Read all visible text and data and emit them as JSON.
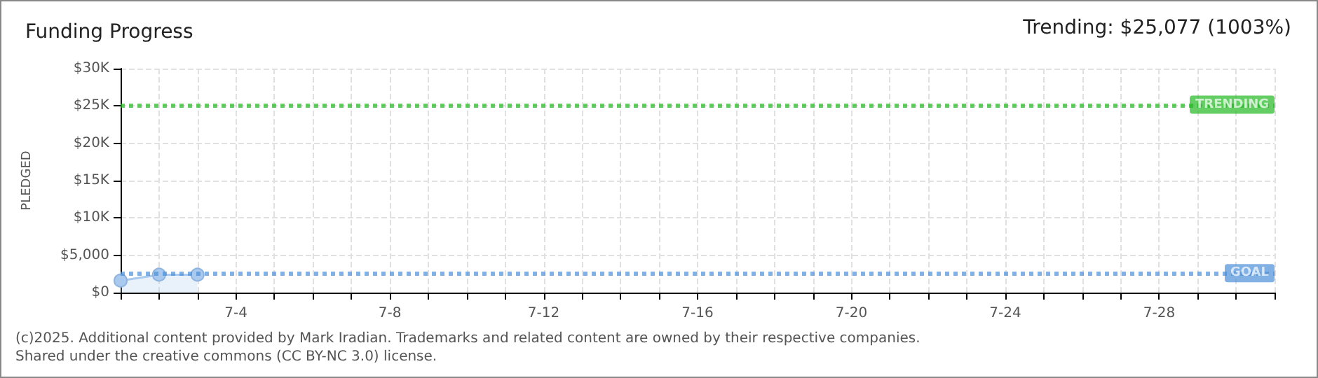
{
  "chart_data": {
    "type": "area",
    "title": "Funding Progress",
    "ylabel": "PLEDGED",
    "annotations": [
      "Trending: $25,077 (1003%)",
      "(c)2025. Additional content provided by Mark Iradian. Trademarks and related content are owned by their respective companies.",
      "Shared under the creative commons (CC BY-NC 3.0) license."
    ],
    "x": [
      "--07-01",
      "--07-02",
      "--07-03"
    ],
    "series": [
      {
        "color": "#a9c9ef",
        "values": [
          1600,
          2400,
          2400
        ]
      }
    ],
    "xlim": [
      "--07-01",
      "--07-31"
    ],
    "xticks": [
      {
        "value": "--07-01",
        "label": null
      },
      {
        "value": "--07-02",
        "label": null
      },
      {
        "value": "--07-03",
        "label": null
      },
      {
        "value": "--07-04",
        "label": "7-4"
      },
      {
        "value": "--07-05",
        "label": null
      },
      {
        "value": "--07-06",
        "label": null
      },
      {
        "value": "--07-07",
        "label": null
      },
      {
        "value": "--07-08",
        "label": "7-8"
      },
      {
        "value": "--07-09",
        "label": null
      },
      {
        "value": "--07-10",
        "label": null
      },
      {
        "value": "--07-11",
        "label": null
      },
      {
        "value": "--07-12",
        "label": "7-12"
      },
      {
        "value": "--07-13",
        "label": null
      },
      {
        "value": "--07-14",
        "label": null
      },
      {
        "value": "--07-15",
        "label": null
      },
      {
        "value": "--07-16",
        "label": "7-16"
      },
      {
        "value": "--07-17",
        "label": null
      },
      {
        "value": "--07-18",
        "label": null
      },
      {
        "value": "--07-19",
        "label": null
      },
      {
        "value": "--07-20",
        "label": "7-20"
      },
      {
        "value": "--07-21",
        "label": null
      },
      {
        "value": "--07-22",
        "label": null
      },
      {
        "value": "--07-23",
        "label": null
      },
      {
        "value": "--07-24",
        "label": "7-24"
      },
      {
        "value": "--07-25",
        "label": null
      },
      {
        "value": "--07-26",
        "label": null
      },
      {
        "value": "--07-27",
        "label": null
      },
      {
        "value": "--07-28",
        "label": "7-28"
      },
      {
        "value": "--07-29",
        "label": null
      },
      {
        "value": "--07-30",
        "label": null
      },
      {
        "value": "--07-31",
        "label": null
      }
    ],
    "ylim": [
      0,
      30000
    ],
    "yticks": [
      {
        "value": 0,
        "label": "$0"
      },
      {
        "value": 5000,
        "label": "$5,000"
      },
      {
        "value": 10000,
        "label": "$10K"
      },
      {
        "value": 15000,
        "label": "$15K"
      },
      {
        "value": 20000,
        "label": "$20K"
      },
      {
        "value": 25000,
        "label": "$25K"
      },
      {
        "value": 30000,
        "label": "$30K"
      }
    ],
    "ref_lines": [
      {
        "axis": "y",
        "value": 25077,
        "label": "TRENDING",
        "color": "#22b922",
        "line_style": "dotted"
      },
      {
        "axis": "y",
        "value": 2500,
        "label": "GOAL",
        "color": "#4a8fd8",
        "line_style": "dotted"
      }
    ],
    "grid": true,
    "marker": "circle",
    "line_style": "solid"
  }
}
